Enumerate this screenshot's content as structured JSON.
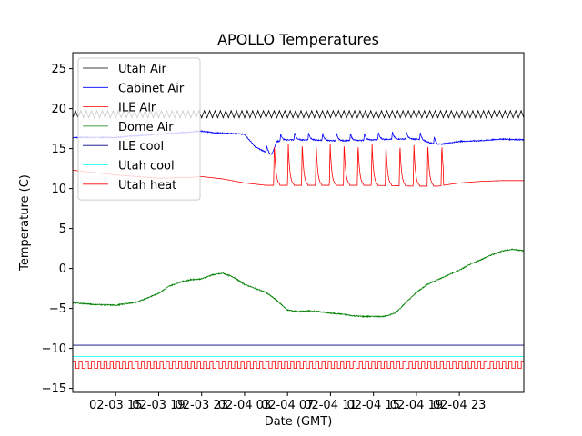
{
  "chart_data": {
    "type": "line",
    "title": "APOLLO Temperatures",
    "xlabel": "Date (GMT)",
    "ylabel": "Temperature (C)",
    "ylim": [
      -15.5,
      27
    ],
    "xlim": [
      0,
      42
    ],
    "yticks": [
      -15,
      -10,
      -5,
      0,
      5,
      10,
      15,
      20,
      25
    ],
    "xticks": [
      {
        "value": 4,
        "label": "02-03 15"
      },
      {
        "value": 8,
        "label": "02-03 19"
      },
      {
        "value": 12,
        "label": "02-03 23"
      },
      {
        "value": 16,
        "label": "02-04 03"
      },
      {
        "value": 20,
        "label": "02-04 07"
      },
      {
        "value": 24,
        "label": "02-04 11"
      },
      {
        "value": 28,
        "label": "02-04 15"
      },
      {
        "value": 32,
        "label": "02-04 19"
      },
      {
        "value": 36,
        "label": "02-04 23"
      }
    ],
    "x_unit": "hours since 02-03 11:00 GMT",
    "legend_position": "upper-left",
    "series": [
      {
        "name": "Utah Air",
        "color": "#000000",
        "style": "sawtooth",
        "base": 19.3,
        "amplitude": 0.45,
        "period_hours": 0.5,
        "x": [
          0,
          42
        ],
        "y": [
          19.3,
          19.3
        ]
      },
      {
        "name": "Cabinet Air",
        "color": "#0000ff",
        "x": [
          0,
          4,
          8,
          12,
          13,
          16,
          17,
          18.5,
          19,
          20,
          22,
          24,
          26,
          28,
          30,
          32,
          34,
          36,
          38,
          40,
          42
        ],
        "y": [
          16.4,
          16.4,
          16.8,
          17.2,
          17.0,
          16.8,
          15.2,
          14.2,
          15.9,
          16.1,
          16.1,
          16.0,
          16.0,
          16.1,
          16.2,
          16.2,
          15.5,
          15.9,
          16.0,
          16.2,
          16.1
        ],
        "spikes": {
          "start": 18.0,
          "end": 34.5,
          "period": 1.3,
          "height": 0.9
        }
      },
      {
        "name": "ILE Air",
        "color": "#ff0000",
        "x": [
          0,
          4,
          8,
          11,
          12,
          14,
          16,
          18,
          20,
          24,
          28,
          32,
          34,
          36,
          38,
          40,
          42
        ],
        "y": [
          12.3,
          11.7,
          11.3,
          11.4,
          11.5,
          11.2,
          10.7,
          10.4,
          10.4,
          10.4,
          10.4,
          10.3,
          10.3,
          10.7,
          10.9,
          11.0,
          11.0
        ],
        "spikes": {
          "start": 18.7,
          "end": 34.5,
          "period": 1.3,
          "height": 5.3
        }
      },
      {
        "name": "Dome Air",
        "color": "#008000",
        "x": [
          0,
          2,
          4,
          6,
          8,
          9,
          10,
          11,
          12,
          13,
          14,
          15,
          16,
          17,
          18,
          19,
          20,
          21,
          22,
          23,
          24,
          25,
          26,
          27,
          28,
          29,
          30,
          31,
          32,
          33,
          34,
          35,
          36,
          37,
          38,
          39,
          40,
          41,
          42
        ],
        "y": [
          -4.3,
          -4.5,
          -4.6,
          -4.2,
          -3.1,
          -2.2,
          -1.7,
          -1.4,
          -1.3,
          -0.8,
          -0.6,
          -1.1,
          -2.0,
          -2.5,
          -3.0,
          -4.0,
          -5.2,
          -5.4,
          -5.3,
          -5.4,
          -5.6,
          -5.7,
          -5.9,
          -6.0,
          -6.0,
          -6.0,
          -5.6,
          -4.3,
          -3.0,
          -2.0,
          -1.4,
          -0.8,
          -0.2,
          0.5,
          1.1,
          1.7,
          2.2,
          2.4,
          2.2
        ]
      },
      {
        "name": "ILE cool",
        "color": "#000080",
        "x": [
          0,
          42
        ],
        "y": [
          -9.6,
          -9.6
        ]
      },
      {
        "name": "Utah cool",
        "color": "#00ffff",
        "x": [
          0,
          42
        ],
        "y": [
          -11.0,
          -11.0
        ]
      },
      {
        "name": "Utah heat",
        "color": "#ff0000",
        "style": "square",
        "low": -12.5,
        "high": -11.6,
        "period_hours": 0.58,
        "x": [
          0,
          42
        ],
        "y": [
          -12.5,
          -11.6
        ]
      }
    ]
  }
}
